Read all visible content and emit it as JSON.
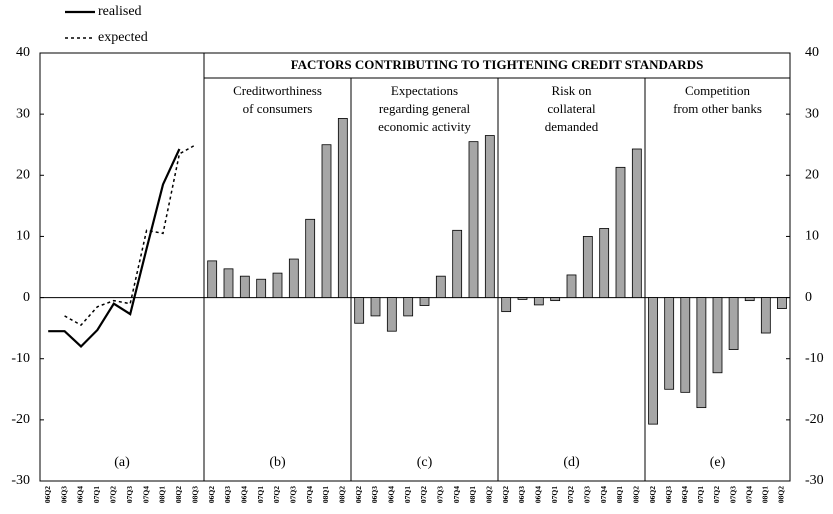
{
  "title": "FACTORS CONTRIBUTING TO TIGHTENING CREDIT STANDARDS",
  "chart_data": [
    {
      "type": "line",
      "label": "(a)",
      "categories": [
        "06Q2",
        "06Q3",
        "06Q4",
        "07Q1",
        "07Q2",
        "07Q3",
        "07Q4",
        "08Q1",
        "08Q2",
        "08Q3"
      ],
      "series": [
        {
          "name": "realised",
          "color": "#000000",
          "dash": "solid",
          "values": [
            -5.5,
            -5.5,
            -8,
            -5.3,
            -1,
            -2.7,
            8,
            18.5,
            24.3,
            null
          ]
        },
        {
          "name": "expected",
          "color": "#000000",
          "dash": "dotted",
          "values": [
            null,
            -3,
            -4.5,
            -1.5,
            -0.5,
            -1,
            11,
            10.5,
            23.5,
            25
          ]
        }
      ],
      "ylim": [
        -30,
        40
      ],
      "yticks": [
        -30,
        -20,
        -10,
        0,
        10,
        20,
        30,
        40
      ]
    },
    {
      "type": "bar",
      "label": "(b)",
      "subtitle": [
        "Creditworthiness",
        "of consumers"
      ],
      "categories": [
        "06Q2",
        "06Q3",
        "06Q4",
        "07Q1",
        "07Q2",
        "07Q3",
        "07Q4",
        "08Q1",
        "08Q2"
      ],
      "values": [
        6,
        4.7,
        3.5,
        3,
        4,
        6.3,
        12.8,
        25,
        29.3
      ],
      "color": "#a6a6a6",
      "ylim": [
        -30,
        40
      ]
    },
    {
      "type": "bar",
      "label": "(c)",
      "subtitle": [
        "Expectations",
        "regarding general",
        "economic activity"
      ],
      "categories": [
        "06Q2",
        "06Q3",
        "06Q4",
        "07Q1",
        "07Q2",
        "07Q3",
        "07Q4",
        "08Q1",
        "08Q2"
      ],
      "values": [
        -4.2,
        -3,
        -5.5,
        -3,
        -1.3,
        3.5,
        11,
        25.5,
        26.5
      ],
      "color": "#a6a6a6",
      "ylim": [
        -30,
        40
      ]
    },
    {
      "type": "bar",
      "label": "(d)",
      "subtitle": [
        "Risk on",
        "collateral",
        "demanded"
      ],
      "categories": [
        "06Q2",
        "06Q3",
        "06Q4",
        "07Q1",
        "07Q2",
        "07Q3",
        "07Q4",
        "08Q1",
        "08Q2"
      ],
      "values": [
        -2.3,
        -0.3,
        -1.2,
        -0.5,
        3.7,
        10,
        11.3,
        21.3,
        24.3
      ],
      "color": "#a6a6a6",
      "ylim": [
        -30,
        40
      ]
    },
    {
      "type": "bar",
      "label": "(e)",
      "subtitle": [
        "Competition",
        "from other banks"
      ],
      "categories": [
        "06Q2",
        "06Q3",
        "06Q4",
        "07Q1",
        "07Q2",
        "07Q3",
        "07Q4",
        "08Q1",
        "08Q2"
      ],
      "values": [
        -20.7,
        -15,
        -15.5,
        -18,
        -12.3,
        -8.5,
        -0.5,
        -5.8,
        -1.8
      ],
      "color": "#a6a6a6",
      "ylim": [
        -30,
        40
      ],
      "y2ticks": [
        -30,
        -20,
        -10,
        0,
        10,
        20,
        30,
        40
      ]
    }
  ]
}
